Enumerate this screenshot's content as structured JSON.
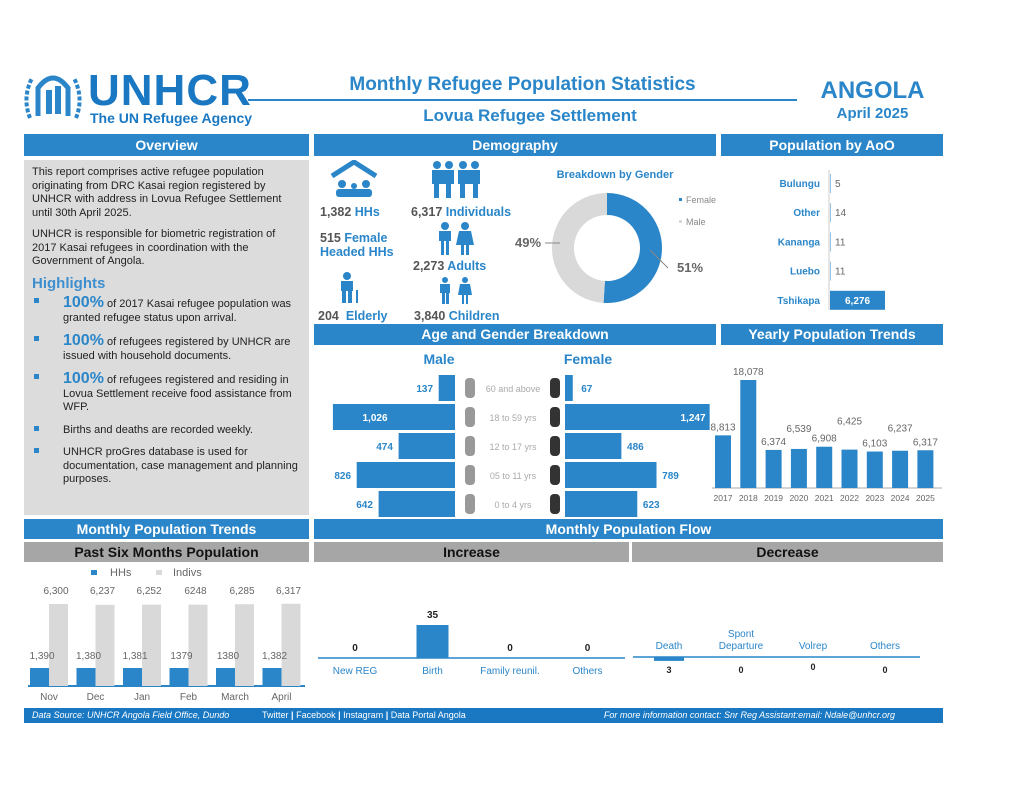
{
  "header": {
    "org": "UNHCR",
    "org_tagline": "The UN Refugee Agency",
    "title": "Monthly Refugee Population Statistics",
    "subtitle": "Lovua Refugee Settlement",
    "country": "ANGOLA",
    "period": "April 2025"
  },
  "sections": {
    "overview": "Overview",
    "demography": "Demography",
    "aoo": "Population by AoO",
    "age_gender": "Age and Gender Breakdown",
    "yearly": "Yearly Population Trends",
    "monthly": "Monthly Population Trends",
    "flow": "Monthly Population Flow",
    "past_six": "Past Six Months Population",
    "increase": "Increase",
    "decrease": "Decrease"
  },
  "overview": {
    "para1": "This report comprises active refugee population originating from DRC Kasai region registered by UNHCR with address in Lovua Refugee Settlement until 30th April 2025.",
    "para2": "UNHCR is responsible for biometric registration of 2017 Kasai refugees in coordination with the Government of Angola.",
    "highlights_title": "Highlights",
    "highlights": [
      {
        "pct": "100%",
        "text": " of 2017 Kasai refugee population was granted refugee status upon arrival."
      },
      {
        "pct": "100%",
        "text": " of refugees registered by UNHCR are issued with household documents."
      },
      {
        "pct": "100%",
        "text": " of refugees registered and residing in Lovua Settlement receive food assistance from WFP."
      },
      {
        "pct": "",
        "text": "Births and deaths are recorded weekly."
      },
      {
        "pct": "",
        "text": "UNHCR proGres database is used for documentation, case management and planning purposes."
      }
    ]
  },
  "demography": {
    "hhs_n": "1,382",
    "hhs_l": "HHs",
    "ind_n": "6,317",
    "ind_l": "Individuals",
    "fhh_n": "515",
    "fhh_l": "Female Headed HHs",
    "adults_n": "2,273",
    "adults_l": "Adults",
    "elderly_n": "204",
    "elderly_l": "Elderly",
    "children_n": "3,840",
    "children_l": "Children"
  },
  "colors": {
    "blue": "#2a86c9",
    "gray": "#d9d9d9"
  },
  "chart_data": [
    {
      "type": "pie",
      "title": "Breakdown by Gender",
      "labels": [
        "Female",
        "Male"
      ],
      "values": [
        51,
        49
      ],
      "value_labels": [
        "51%",
        "49%"
      ],
      "legend": "right"
    },
    {
      "type": "bar",
      "title": "Population by AoO",
      "orientation": "horizontal",
      "categories": [
        "Bulungu",
        "Other",
        "Kananga",
        "Luebo",
        "Tshikapa"
      ],
      "values": [
        5,
        14,
        11,
        11,
        6276
      ],
      "value_labels": [
        "5",
        "14",
        "11",
        "11",
        "6,276"
      ]
    },
    {
      "type": "bar",
      "title": "Age and Gender Breakdown",
      "orientation": "horizontal",
      "series_titles": [
        "Male",
        "Female"
      ],
      "categories": [
        "60 and above",
        "18 to 59 yrs",
        "12 to 17 yrs",
        "05 to 11 yrs",
        "0 to 4 yrs"
      ],
      "series": [
        {
          "name": "Male",
          "values": [
            137,
            1026,
            474,
            826,
            642
          ],
          "labels": [
            "137",
            "1,026",
            "474",
            "826",
            "642"
          ]
        },
        {
          "name": "Female",
          "values": [
            67,
            1247,
            486,
            789,
            623
          ],
          "labels": [
            "67",
            "1,247",
            "486",
            "789",
            "623"
          ]
        }
      ]
    },
    {
      "type": "bar",
      "title": "Yearly Population Trends",
      "categories": [
        "2017",
        "2018",
        "2019",
        "2020",
        "2021",
        "2022",
        "2023",
        "2024",
        "2025"
      ],
      "values": [
        8813,
        18078,
        6374,
        6539,
        6908,
        6425,
        6103,
        6237,
        6317
      ],
      "value_labels": [
        "8,813",
        "18,078",
        "6,374",
        "6,539",
        "6,908",
        "6,425",
        "6,103",
        "6,237",
        "6,317"
      ]
    },
    {
      "type": "bar",
      "title": "Past Six Months Population",
      "categories": [
        "Nov",
        "Dec",
        "Jan",
        "Feb",
        "March",
        "April"
      ],
      "legend": "top",
      "series": [
        {
          "name": "HHs",
          "values": [
            1390,
            1380,
            1381,
            1379,
            1380,
            1382
          ],
          "labels": [
            "1,390",
            "1,380",
            "1,381",
            "1379",
            "1380",
            "1,382"
          ]
        },
        {
          "name": "Indivs",
          "values": [
            6300,
            6237,
            6252,
            6248,
            6285,
            6317
          ],
          "labels": [
            "6,300",
            "6,237",
            "6,252",
            "6248",
            "6,285",
            "6,317"
          ]
        }
      ]
    },
    {
      "type": "bar",
      "title": "Increase",
      "categories": [
        "New REG",
        "Birth",
        "Family reunil.",
        "Others"
      ],
      "values": [
        0,
        35,
        0,
        0
      ],
      "value_labels": [
        "0",
        "35",
        "0",
        "0"
      ]
    },
    {
      "type": "bar",
      "title": "Decrease",
      "categories": [
        "Death",
        "Spont Departure",
        "Volrep",
        "Others"
      ],
      "values": [
        3,
        0,
        0,
        0
      ],
      "value_labels": [
        "3",
        "0",
        "0",
        "0"
      ]
    }
  ],
  "footer": {
    "source": "Data Source: UNHCR Angola Field Office, Dundo",
    "links": [
      "Twitter",
      "Facebook",
      "Instagram",
      "Data Portal Angola"
    ],
    "contact": "For more information contact: Snr Reg Assistant:email: Ndale@unhcr.org"
  }
}
